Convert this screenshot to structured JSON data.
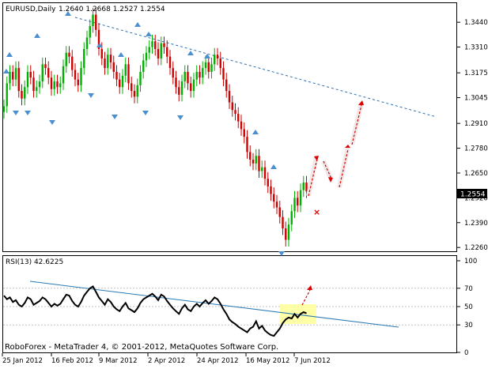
{
  "chart_data": [
    {
      "type": "candlestick",
      "symbol_line": "EURUSD,Daily",
      "ohlc_text": "1.2640 1.2668 1.2527 1.2554",
      "current_price_label": "1.2554",
      "ylim": [
        1.224,
        1.354
      ],
      "y_ticks": [
        1.344,
        1.331,
        1.3175,
        1.3045,
        1.291,
        1.278,
        1.265,
        1.252,
        1.239,
        1.226
      ],
      "x_ticks": [
        "25 Jan 2012",
        "16 Feb 2012",
        "9 Mar 2012",
        "2 Apr 2012",
        "24 Apr 2012",
        "16 May 2012",
        "7 Jun 2012"
      ],
      "closes": [
        1.3,
        1.312,
        1.318,
        1.314,
        1.32,
        1.308,
        1.304,
        1.31,
        1.318,
        1.315,
        1.308,
        1.31,
        1.313,
        1.322,
        1.32,
        1.315,
        1.309,
        1.313,
        1.31,
        1.312,
        1.321,
        1.328,
        1.326,
        1.319,
        1.314,
        1.311,
        1.32,
        1.33,
        1.336,
        1.342,
        1.348,
        1.34,
        1.33,
        1.325,
        1.32,
        1.327,
        1.323,
        1.318,
        1.314,
        1.31,
        1.316,
        1.322,
        1.312,
        1.308,
        1.305,
        1.311,
        1.318,
        1.324,
        1.328,
        1.331,
        1.334,
        1.33,
        1.325,
        1.333,
        1.331,
        1.326,
        1.32,
        1.315,
        1.31,
        1.306,
        1.313,
        1.318,
        1.312,
        1.308,
        1.314,
        1.318,
        1.315,
        1.32,
        1.323,
        1.318,
        1.322,
        1.327,
        1.325,
        1.32,
        1.314,
        1.308,
        1.302,
        1.298,
        1.296,
        1.292,
        1.288,
        1.284,
        1.276,
        1.272,
        1.27,
        1.274,
        1.266,
        1.268,
        1.262,
        1.258,
        1.254,
        1.25,
        1.247,
        1.242,
        1.236,
        1.23,
        1.238,
        1.245,
        1.252,
        1.248,
        1.256,
        1.26,
        1.2554
      ],
      "fractal_up_markers": 30,
      "fractal_down_markers": 22,
      "resistance_line_label": ""
    },
    {
      "type": "line",
      "title": "RSI(13) 42.6225",
      "ylim": [
        0,
        100
      ],
      "y_ticks": [
        100,
        70,
        50,
        30,
        0
      ],
      "levels": [
        70,
        50,
        30
      ],
      "values": [
        62,
        58,
        60,
        55,
        57,
        52,
        50,
        54,
        60,
        58,
        52,
        54,
        56,
        60,
        58,
        54,
        50,
        53,
        51,
        53,
        58,
        63,
        62,
        56,
        52,
        50,
        55,
        62,
        66,
        70,
        72,
        66,
        60,
        56,
        52,
        58,
        55,
        50,
        47,
        45,
        50,
        54,
        48,
        46,
        44,
        48,
        54,
        58,
        60,
        62,
        64,
        61,
        57,
        63,
        61,
        56,
        52,
        48,
        45,
        42,
        48,
        52,
        47,
        45,
        50,
        53,
        50,
        54,
        57,
        53,
        56,
        60,
        58,
        53,
        47,
        42,
        36,
        33,
        31,
        28,
        26,
        24,
        22,
        26,
        28,
        34,
        26,
        29,
        24,
        21,
        19,
        18,
        22,
        26,
        32,
        36,
        38,
        37,
        42,
        38,
        42,
        44,
        42.6
      ]
    }
  ],
  "footer": {
    "copyright": "RoboForex - MetaTrader 4, © 2001-2012, MetaQuotes Software Corp."
  }
}
